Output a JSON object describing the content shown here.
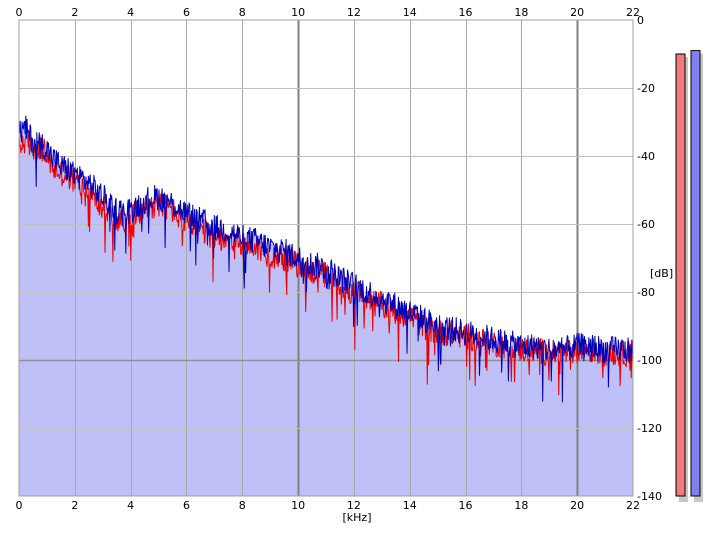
{
  "chart_data": {
    "type": "area",
    "xlabel": "[kHz]",
    "ylabel": "[dB]",
    "xlim": [
      0,
      22
    ],
    "ylim": [
      -140,
      0
    ],
    "x_ticks": [
      "0",
      "2",
      "4",
      "6",
      "8",
      "10",
      "12",
      "14",
      "16",
      "18",
      "20",
      "22"
    ],
    "y_ticks": [
      "0",
      "-20",
      "-40",
      "-60",
      "-80",
      "-100",
      "-120",
      "-140"
    ],
    "grid": true,
    "colors": {
      "fill": "#c0c0f8",
      "channel_left": "#ee0000",
      "channel_right": "#0000bb",
      "meter_left": "#f07a80",
      "meter_right": "#8080f0"
    },
    "series": [
      {
        "channel": "left",
        "x": [
          0,
          0.25,
          0.5,
          0.75,
          1,
          1.25,
          1.5,
          2,
          2.5,
          3,
          3.5,
          4,
          4.5,
          5,
          5.5,
          6,
          6.5,
          7,
          7.5,
          8,
          8.5,
          9,
          9.5,
          10,
          10.5,
          11,
          11.5,
          12,
          12.5,
          13,
          13.5,
          14,
          14.5,
          15,
          15.5,
          16,
          16.5,
          17,
          17.5,
          18,
          18.5,
          19,
          19.5,
          20,
          20.5,
          21,
          21.5,
          22
        ],
        "values": [
          -38,
          -35,
          -38,
          -37,
          -40,
          -44,
          -45,
          -47,
          -51,
          -55,
          -59,
          -58,
          -55,
          -54,
          -56,
          -60,
          -62,
          -64,
          -64,
          -66,
          -67,
          -69,
          -70,
          -72,
          -74,
          -75,
          -78,
          -80,
          -82,
          -84,
          -86,
          -87,
          -90,
          -92,
          -92,
          -93,
          -94,
          -95,
          -96,
          -97,
          -97,
          -98,
          -98,
          -97,
          -97,
          -98,
          -98,
          -98
        ]
      },
      {
        "channel": "right",
        "x": [
          0,
          0.25,
          0.5,
          0.75,
          1,
          1.25,
          1.5,
          2,
          2.5,
          3,
          3.5,
          4,
          4.5,
          5,
          5.5,
          6,
          6.5,
          7,
          7.5,
          8,
          8.5,
          9,
          9.5,
          10,
          10.5,
          11,
          11.5,
          12,
          12.5,
          13,
          13.5,
          14,
          14.5,
          15,
          15.5,
          16,
          16.5,
          17,
          17.5,
          18,
          18.5,
          19,
          19.5,
          20,
          20.5,
          21,
          21.5,
          22
        ],
        "values": [
          -33,
          -32,
          -36,
          -36,
          -38,
          -41,
          -43,
          -45,
          -48,
          -52,
          -56,
          -56,
          -53,
          -52,
          -54,
          -57,
          -59,
          -61,
          -62,
          -64,
          -65,
          -67,
          -68,
          -70,
          -72,
          -73,
          -76,
          -78,
          -80,
          -82,
          -84,
          -86,
          -88,
          -90,
          -91,
          -92,
          -93,
          -94,
          -95,
          -96,
          -96,
          -97,
          -97,
          -96,
          -96,
          -97,
          -97,
          -97
        ]
      }
    ],
    "level_meters": [
      {
        "channel": "left",
        "level_db": -10
      },
      {
        "channel": "right",
        "level_db": -9
      }
    ]
  }
}
